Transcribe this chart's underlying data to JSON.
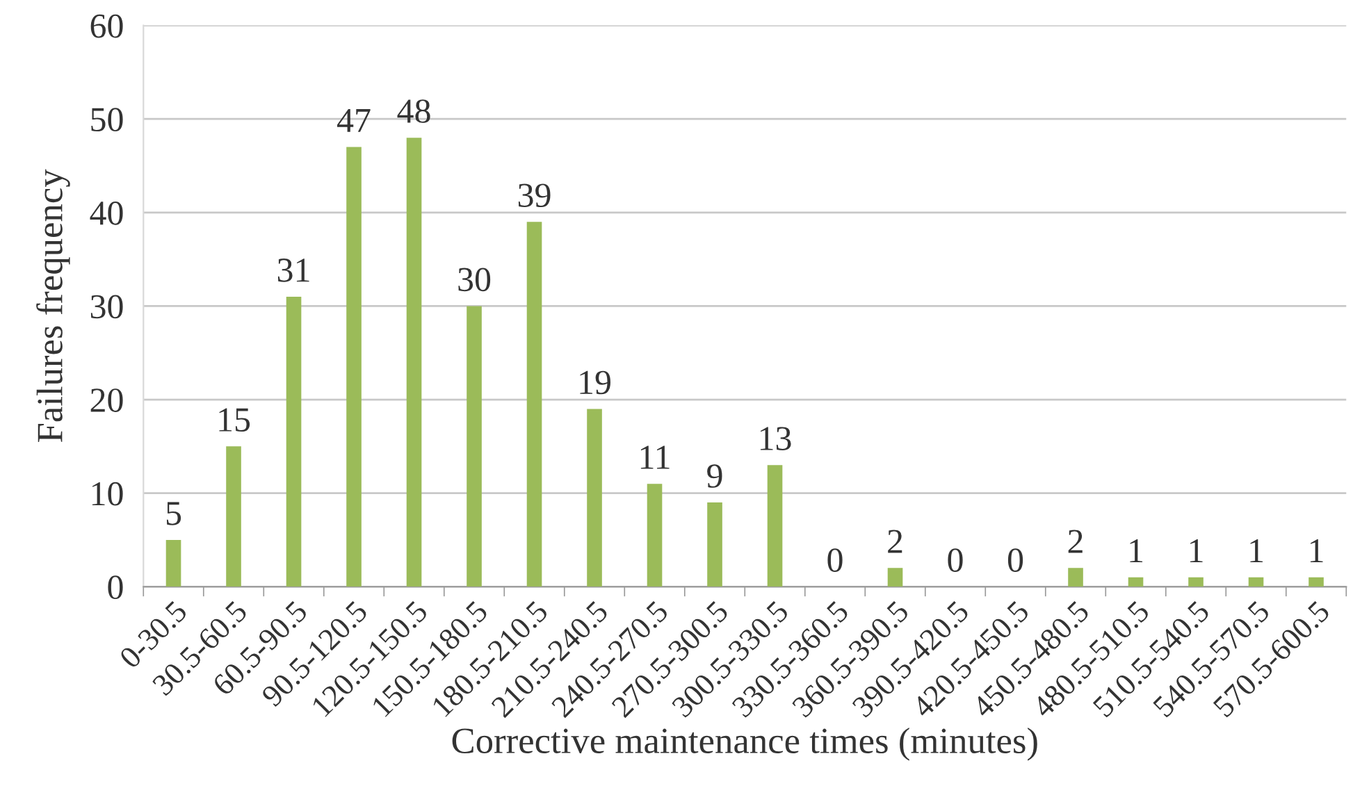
{
  "chart_data": {
    "type": "bar",
    "xlabel": "Corrective maintenance times (minutes)",
    "ylabel": "Failures frequency",
    "categories": [
      "0-30.5",
      "30.5-60.5",
      "60.5-90.5",
      "90.5-120.5",
      "120.5-150.5",
      "150.5-180.5",
      "180.5-210.5",
      "210.5-240.5",
      "240.5-270.5",
      "270.5-300.5",
      "300.5-330.5",
      "330.5-360.5",
      "360.5-390.5",
      "390.5-420.5",
      "420.5-450.5",
      "450.5-480.5",
      "480.5-510.5",
      "510.5-540.5",
      "540.5-570.5",
      "570.5-600.5"
    ],
    "values": [
      5,
      15,
      31,
      47,
      48,
      30,
      39,
      19,
      11,
      9,
      13,
      0,
      2,
      0,
      0,
      2,
      1,
      1,
      1,
      1
    ],
    "color": "#9bbb59",
    "ylim": [
      0,
      60
    ],
    "yticks": [
      0,
      10,
      20,
      30,
      40,
      50,
      60
    ],
    "grid": "y",
    "data_labels": true
  }
}
